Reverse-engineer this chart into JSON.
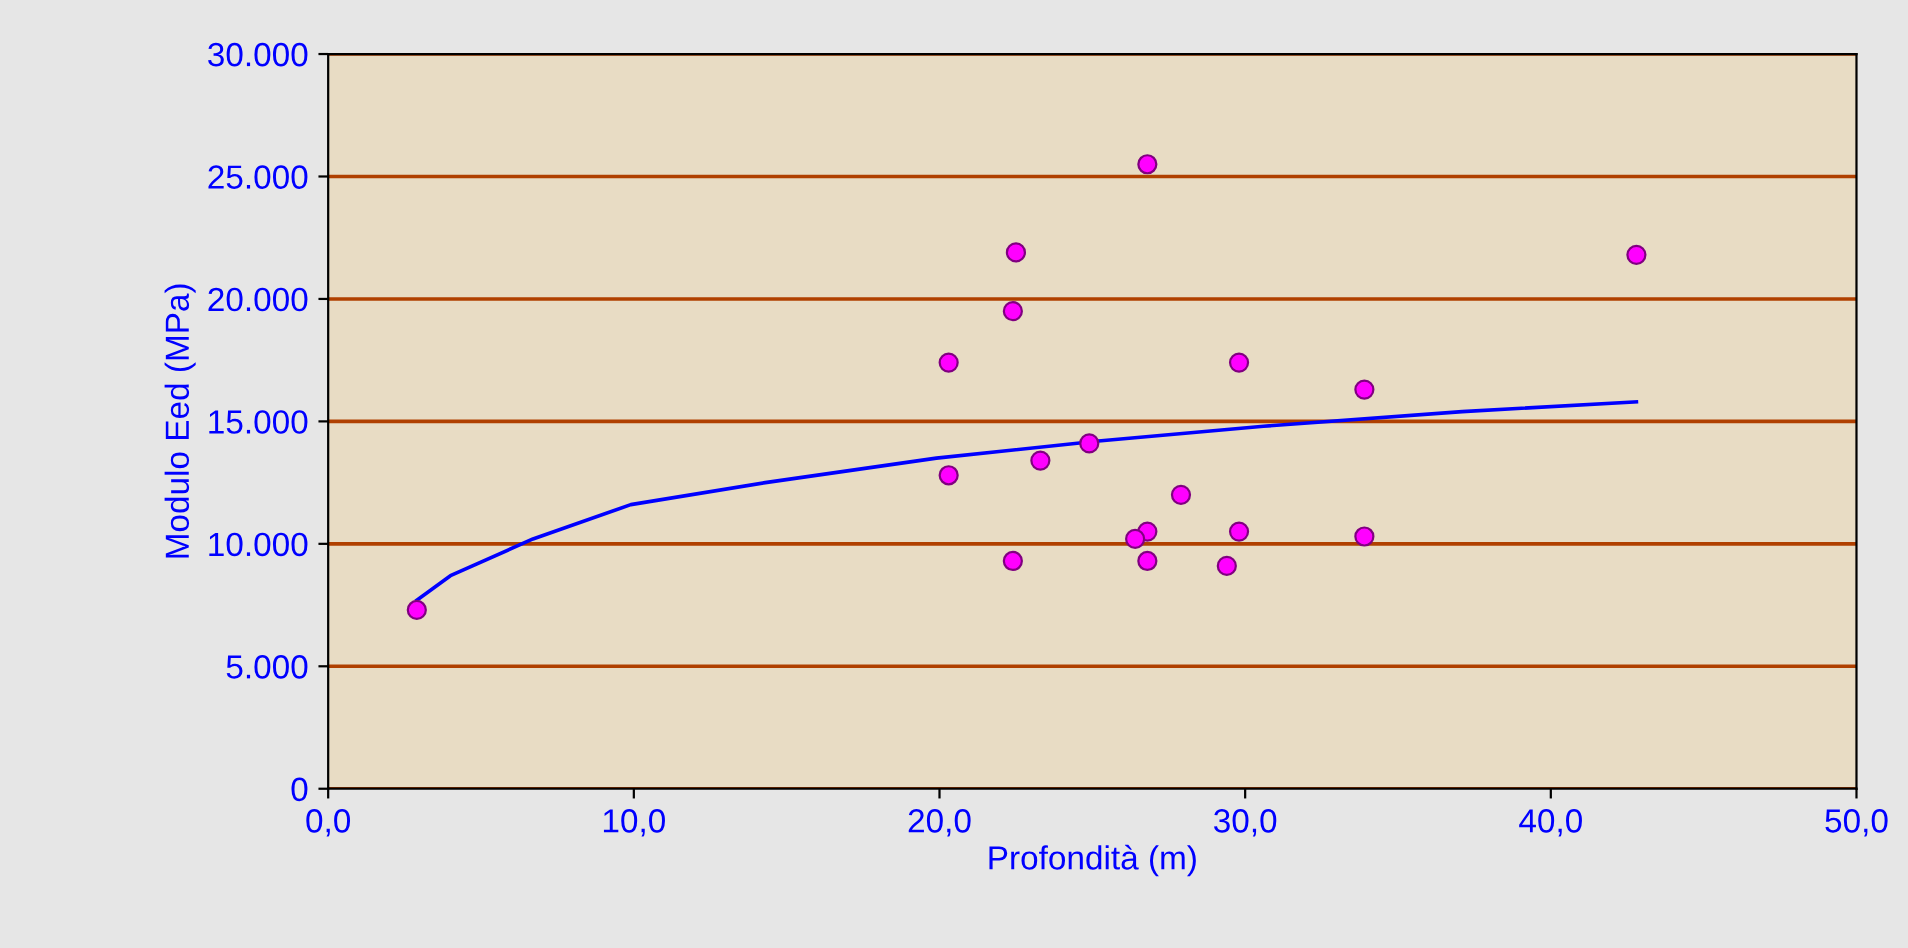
{
  "chart_data": {
    "type": "scatter",
    "xlabel": "Profondità (m)",
    "ylabel": "Modulo Eed (MPa)",
    "xlim": [
      0,
      50
    ],
    "ylim": [
      0,
      30000
    ],
    "xticks": [
      {
        "value": 0,
        "label": "0,0"
      },
      {
        "value": 10,
        "label": "10,0"
      },
      {
        "value": 20,
        "label": "20,0"
      },
      {
        "value": 30,
        "label": "30,0"
      },
      {
        "value": 40,
        "label": "40,0"
      },
      {
        "value": 50,
        "label": "50,0"
      }
    ],
    "yticks": [
      0,
      {
        "value": 5000,
        "label": "5.000"
      },
      {
        "value": 10000,
        "label": "10.000"
      },
      {
        "value": 15000,
        "label": "15.000"
      },
      {
        "value": 20000,
        "label": "20.000"
      },
      {
        "value": 25000,
        "label": "25.000"
      },
      {
        "value": 30000,
        "label": "30.000"
      }
    ],
    "grid": "y",
    "marker": "circle",
    "series": [
      {
        "type": "scatter",
        "color": "#ff00ff",
        "x": [
          2.9,
          26.8,
          22.5,
          42.8,
          22.4,
          20.3,
          29.8,
          33.9,
          24.9,
          23.3,
          20.3,
          27.9,
          26.8,
          26.4,
          29.8,
          33.9,
          22.4,
          26.8,
          29.4
        ],
        "values": [
          7300,
          25500,
          21900,
          21800,
          19500,
          17400,
          17400,
          16300,
          14100,
          13400,
          12800,
          12000,
          10500,
          10200,
          10500,
          10300,
          9300,
          9300,
          9100
        ]
      },
      {
        "type": "line",
        "color": "#0000ff",
        "marker": "none",
        "x": [
          2.9,
          4,
          6.7,
          9.9,
          14.3,
          19.9,
          25.2,
          30.6,
          37.1,
          42.8
        ],
        "values": [
          7700,
          8700,
          10200,
          11600,
          12500,
          13500,
          14200,
          14800,
          15400,
          15800
        ]
      }
    ]
  }
}
